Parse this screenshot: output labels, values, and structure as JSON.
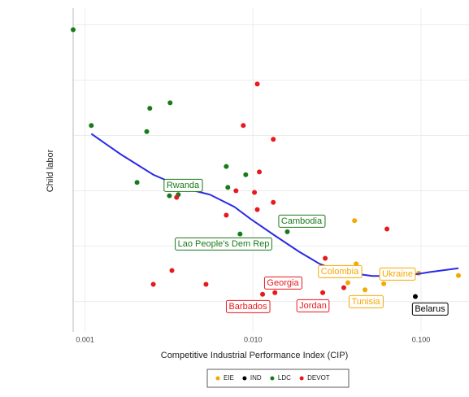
{
  "chart_data": {
    "type": "scatter",
    "x_label": "Competitive Industrial Performance Index (CIP)",
    "y_label": "Child labor",
    "xlog": true,
    "xlim": [
      0.00085,
      0.193
    ],
    "ylim": [
      0.45,
      6.3
    ],
    "xticks": [
      {
        "value": 0.001,
        "label": "0.001"
      },
      {
        "value": 0.01,
        "label": "0.010"
      },
      {
        "value": 0.1,
        "label": "0.100"
      }
    ],
    "yticks": [
      1,
      2,
      3,
      4,
      5,
      6
    ],
    "grid": true,
    "legend": "bottom",
    "series": [
      {
        "name": "EIE",
        "color": "#f5a800",
        "x": [
          0.0402,
          0.0411,
          0.0367,
          0.0464,
          0.06,
          0.0627,
          0.0968,
          0.167
        ],
        "values": [
          2.46,
          1.68,
          1.34,
          1.21,
          1.32,
          1.51,
          1.51,
          1.47
        ]
      },
      {
        "name": "IND",
        "color": "#000000",
        "x": [
          0.0925
        ],
        "values": [
          1.09
        ]
      },
      {
        "name": "LDC",
        "color": "#1a7a1a",
        "x": [
          0.00085,
          0.00109,
          0.00243,
          0.00321,
          0.00233,
          0.00204,
          0.00318,
          0.00359,
          0.00693,
          0.00708,
          0.00905,
          0.00837,
          0.016
        ],
        "values": [
          5.91,
          4.18,
          4.49,
          4.59,
          4.07,
          3.15,
          2.91,
          2.93,
          3.44,
          3.06,
          3.29,
          2.22,
          2.26
        ]
      },
      {
        "name": "DEVOT",
        "color": "#e8191e",
        "x": [
          0.0106,
          0.00875,
          0.0132,
          0.0109,
          0.0102,
          0.00792,
          0.00351,
          0.0132,
          0.0106,
          0.00693,
          0.0627,
          0.0269,
          0.00329,
          0.00255,
          0.00525,
          0.0114,
          0.0135,
          0.026,
          0.0347
        ],
        "values": [
          4.93,
          4.18,
          3.93,
          3.34,
          2.97,
          3.0,
          2.88,
          2.79,
          2.66,
          2.56,
          2.31,
          1.78,
          1.56,
          1.31,
          1.31,
          1.13,
          1.16,
          1.16,
          1.25
        ]
      }
    ],
    "smooth": {
      "color": "#2a2ae8",
      "x": [
        0.00109,
        0.00163,
        0.00255,
        0.00397,
        0.00555,
        0.00774,
        0.00968,
        0.0135,
        0.0188,
        0.0249,
        0.0329,
        0.0513,
        0.08,
        0.112,
        0.167
      ],
      "values": [
        4.03,
        3.66,
        3.29,
        3.04,
        2.93,
        2.71,
        2.49,
        2.19,
        1.9,
        1.68,
        1.54,
        1.46,
        1.46,
        1.53,
        1.6
      ]
    },
    "annotations": [
      {
        "text": "Rwanda",
        "series": 2
      },
      {
        "text": "Cambodia",
        "series": 2
      },
      {
        "text": "Lao People's Dem Rep",
        "series": 2
      },
      {
        "text": "Georgia",
        "series": 3
      },
      {
        "text": "Barbados",
        "series": 3
      },
      {
        "text": "Jordan",
        "series": 3
      },
      {
        "text": "Colombia",
        "series": 0
      },
      {
        "text": "Ukraine",
        "series": 0
      },
      {
        "text": "Tunisia",
        "series": 0
      },
      {
        "text": "Belarus",
        "series": 1
      }
    ]
  }
}
